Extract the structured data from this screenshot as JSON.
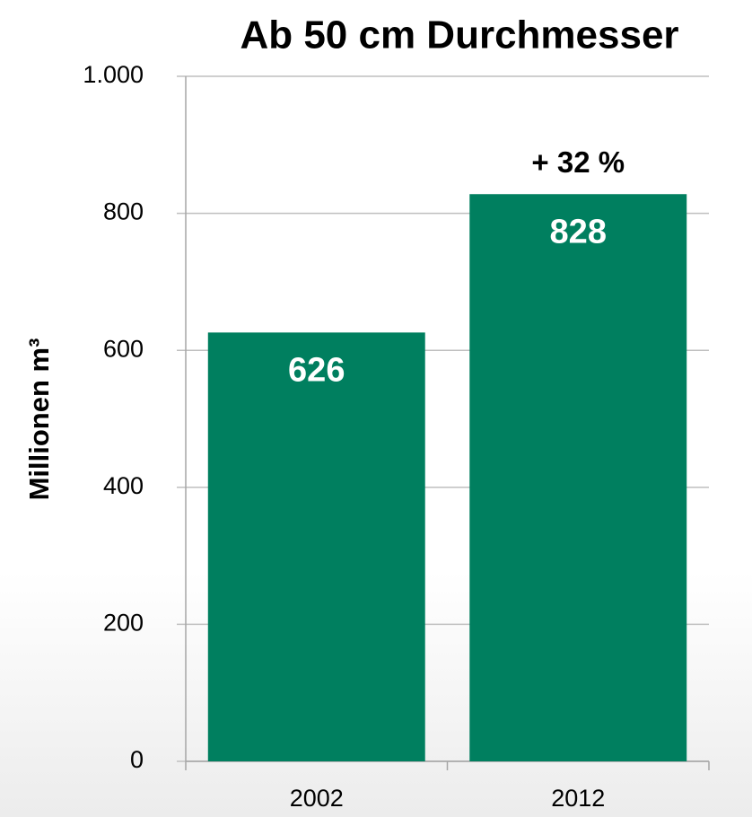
{
  "chart_data": {
    "type": "bar",
    "title": "Ab 50 cm Durchmesser",
    "y_label": "Millionen m³",
    "categories": [
      "2002",
      "2012"
    ],
    "values": [
      626,
      828
    ],
    "color": "#007f5f",
    "annotation": "+ 32 %",
    "ylim": [
      0,
      1000
    ],
    "yticks": [
      0,
      200,
      400,
      600,
      800,
      {
        "value": 1000,
        "label": "1.000"
      }
    ],
    "grid": true
  }
}
